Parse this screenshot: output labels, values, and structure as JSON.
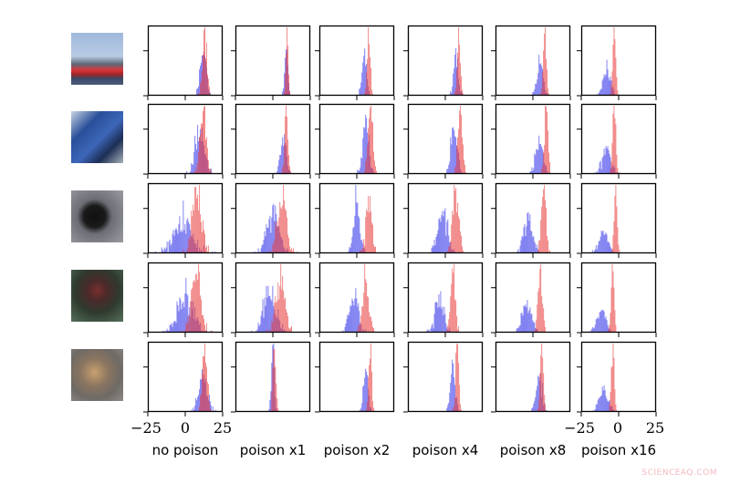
{
  "chart_data": {
    "type": "histogram-grid",
    "x_range": [
      -25,
      25
    ],
    "x_ticks": [
      -25,
      0,
      25
    ],
    "x_tick_labels": [
      "−25",
      "0",
      "25"
    ],
    "columns": [
      "no poison",
      "poison x1",
      "poison x2",
      "poison x4",
      "poison x8",
      "poison x16"
    ],
    "row_images": [
      "ship",
      "truck",
      "dog",
      "horse",
      "cat"
    ],
    "series_colors": {
      "blue": "#2f2fe8",
      "red": "#e83a3a"
    },
    "panels": [
      [
        {
          "blue": [
            12,
            2
          ],
          "red": [
            13,
            1.5
          ]
        },
        {
          "blue": [
            9,
            1
          ],
          "red": [
            9.5,
            0.8
          ]
        },
        {
          "blue": [
            5,
            1.5
          ],
          "red": [
            8,
            1
          ]
        },
        {
          "blue": [
            7,
            1.5
          ],
          "red": [
            9,
            1
          ]
        },
        {
          "blue": [
            5,
            2
          ],
          "red": [
            8,
            1
          ]
        },
        {
          "blue": [
            -8,
            2.5
          ],
          "red": [
            -3,
            1
          ]
        }
      ],
      [
        {
          "blue": [
            10,
            3
          ],
          "red": [
            12,
            2
          ]
        },
        {
          "blue": [
            7,
            2
          ],
          "red": [
            9,
            1
          ]
        },
        {
          "blue": [
            6,
            2
          ],
          "red": [
            9,
            1.5
          ]
        },
        {
          "blue": [
            6,
            2
          ],
          "red": [
            10,
            1.5
          ]
        },
        {
          "blue": [
            4,
            2.5
          ],
          "red": [
            9,
            1.2
          ]
        },
        {
          "blue": [
            -8,
            3
          ],
          "red": [
            -3,
            1
          ]
        }
      ],
      [
        {
          "blue": [
            -2,
            6
          ],
          "red": [
            8,
            3
          ]
        },
        {
          "blue": [
            0,
            4
          ],
          "red": [
            6,
            3
          ]
        },
        {
          "blue": [
            0,
            2
          ],
          "red": [
            8,
            2
          ]
        },
        {
          "blue": [
            -2,
            3
          ],
          "red": [
            7,
            2
          ]
        },
        {
          "blue": [
            -3,
            3
          ],
          "red": [
            7,
            1.5
          ]
        },
        {
          "blue": [
            -10,
            3
          ],
          "red": [
            -2,
            1
          ]
        }
      ],
      [
        {
          "blue": [
            0,
            5
          ],
          "red": [
            7,
            3
          ]
        },
        {
          "blue": [
            -2,
            4
          ],
          "red": [
            5,
            3
          ]
        },
        {
          "blue": [
            -2,
            3
          ],
          "red": [
            6,
            2
          ]
        },
        {
          "blue": [
            -4,
            3
          ],
          "red": [
            5,
            1.5
          ]
        },
        {
          "blue": [
            -4,
            3
          ],
          "red": [
            5,
            1.5
          ]
        },
        {
          "blue": [
            -12,
            3
          ],
          "red": [
            -4,
            1
          ]
        }
      ],
      [
        {
          "blue": [
            12,
            3
          ],
          "red": [
            13,
            1.5
          ]
        },
        {
          "blue": [
            0,
            1
          ],
          "red": [
            1,
            1
          ]
        },
        {
          "blue": [
            6,
            1.5
          ],
          "red": [
            9,
            1
          ]
        },
        {
          "blue": [
            5,
            1.5
          ],
          "red": [
            8,
            1
          ]
        },
        {
          "blue": [
            4,
            2
          ],
          "red": [
            6,
            1
          ]
        },
        {
          "blue": [
            -10,
            3
          ],
          "red": [
            -4,
            1
          ]
        }
      ]
    ]
  },
  "watermark": "SCIENCEAQ.COM"
}
